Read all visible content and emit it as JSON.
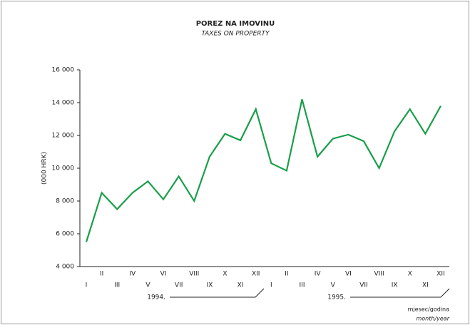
{
  "chart_data": {
    "type": "line",
    "title": "POREZ NA IMOVINU",
    "subtitle": "TAXES ON PROPERTY",
    "y_label": "(000 HRK)",
    "x_label": "mjesec/godina",
    "x_label_en": "month/year",
    "years": [
      "1994.",
      "1995."
    ],
    "categories": [
      "I",
      "II",
      "III",
      "IV",
      "V",
      "VI",
      "VII",
      "VIII",
      "IX",
      "X",
      "XI",
      "XII",
      "I",
      "II",
      "III",
      "IV",
      "V",
      "VI",
      "VII",
      "VIII",
      "IX",
      "X",
      "XI",
      "XII"
    ],
    "series": [
      {
        "name": "Taxes on property",
        "color": "#1a9e4a",
        "values": [
          5500,
          8500,
          7500,
          8500,
          9200,
          8100,
          9500,
          8000,
          10700,
          12100,
          11700,
          13600,
          10300,
          9850,
          14200,
          10700,
          11800,
          12050,
          11650,
          10000,
          12250,
          13600,
          12100,
          13800
        ]
      }
    ],
    "ylim": [
      4000,
      16000
    ],
    "yticks": [
      {
        "value": 4000,
        "label": "4 000"
      },
      {
        "value": 6000,
        "label": "6 000"
      },
      {
        "value": 8000,
        "label": "8 000"
      },
      {
        "value": 10000,
        "label": "10 000"
      },
      {
        "value": 12000,
        "label": "12 000"
      },
      {
        "value": 14000,
        "label": "14 000"
      },
      {
        "value": 16000,
        "label": "16 000"
      }
    ]
  }
}
